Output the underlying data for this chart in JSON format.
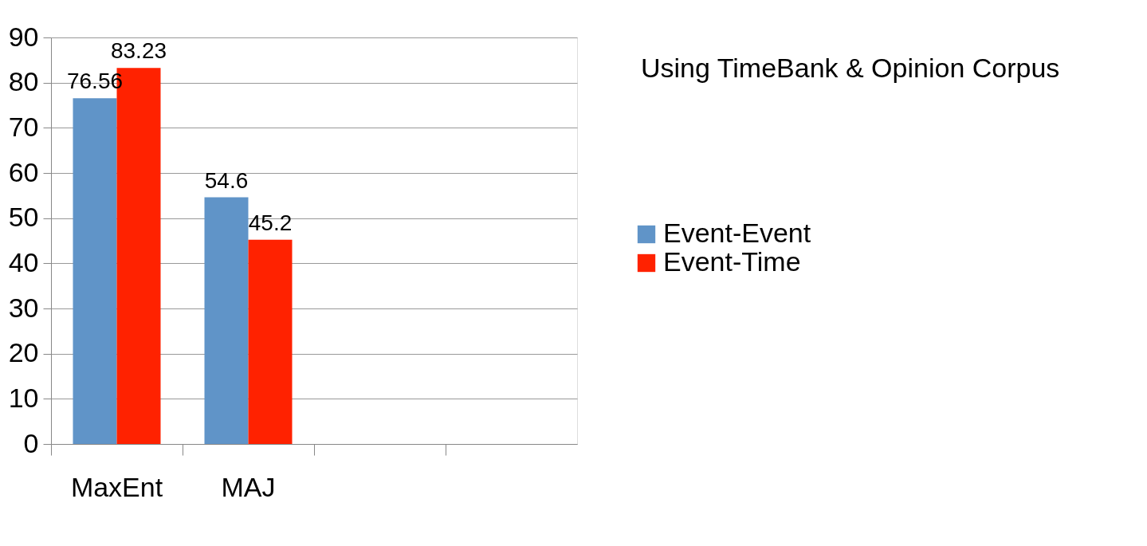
{
  "chart_data": {
    "type": "bar",
    "title": "Using TimeBank & Opinion Corpus",
    "categories": [
      "MaxEnt",
      "MAJ",
      null,
      null
    ],
    "series": [
      {
        "name": "Event-Event",
        "color": "#6094c8",
        "values": [
          76.56,
          54.6,
          null,
          null
        ]
      },
      {
        "name": "Event-Time",
        "color": "#ff2200",
        "values": [
          83.23,
          45.2,
          null,
          null
        ]
      }
    ],
    "ylim": [
      0,
      90
    ],
    "yticks": [
      0,
      10,
      20,
      30,
      40,
      50,
      60,
      70,
      80,
      90
    ],
    "grid": "y",
    "legend": "right",
    "data_labels": true
  }
}
